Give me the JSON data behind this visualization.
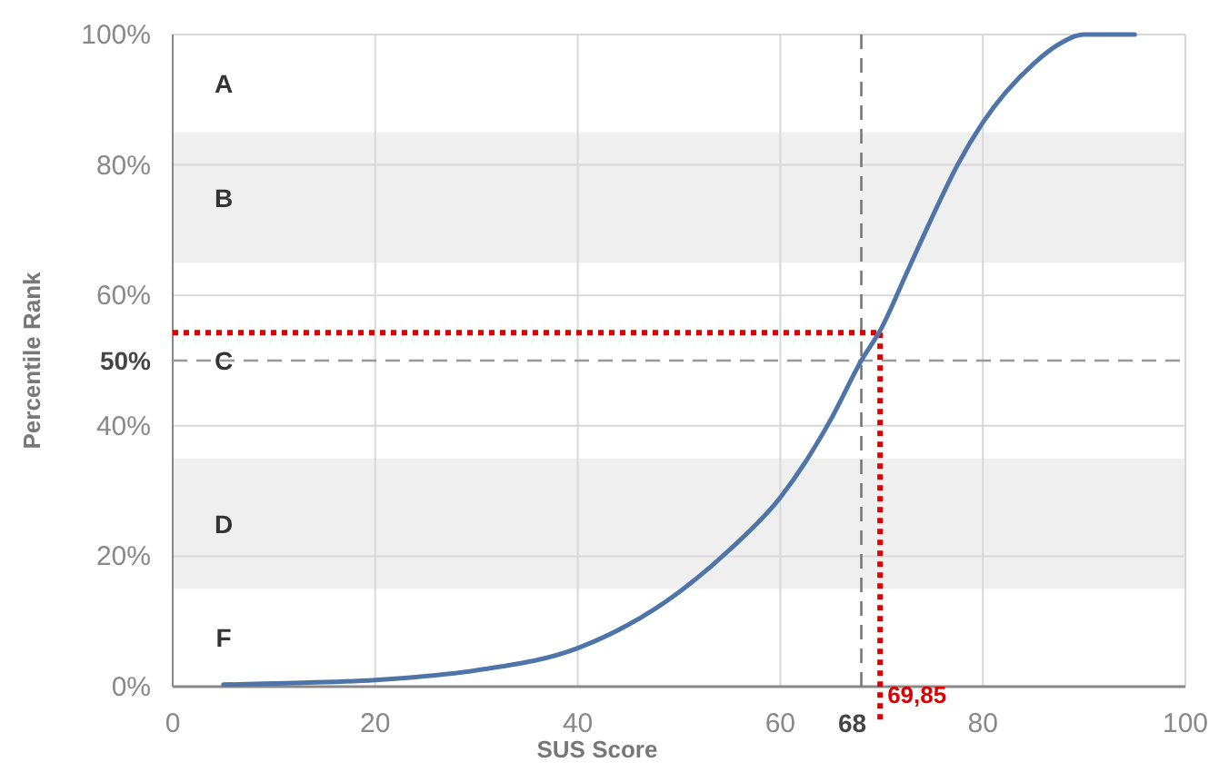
{
  "chart_data": {
    "type": "line",
    "xlabel": "SUS Score",
    "ylabel": "Percentile Rank",
    "x": [
      5,
      10,
      20,
      30,
      40,
      45,
      50,
      55,
      60,
      62.5,
      65,
      68,
      70,
      72.5,
      75,
      77.5,
      80,
      85,
      87.5,
      90,
      95
    ],
    "series": [
      {
        "color": "#4f74a8",
        "values": [
          0.3,
          0.5,
          1,
          2.5,
          5.9,
          9.5,
          14.5,
          21,
          29,
          34.5,
          41,
          50,
          55,
          63.5,
          72,
          80,
          86.5,
          95.5,
          98.5,
          100,
          100
        ]
      }
    ],
    "xlim": [
      0,
      100
    ],
    "xticks": [
      0,
      20,
      40,
      60,
      80,
      100
    ],
    "ylim": [
      0,
      100
    ],
    "yticks": [
      {
        "value": 0,
        "label": "0%"
      },
      {
        "value": 20,
        "label": "20%"
      },
      {
        "value": 40,
        "label": "40%"
      },
      {
        "value": 60,
        "label": "60%"
      },
      {
        "value": 80,
        "label": "80%"
      },
      {
        "value": 100,
        "label": "100%"
      }
    ],
    "grid": true,
    "marker": "none",
    "line_style": "solid",
    "bands": [
      {
        "axis": "y",
        "from": 65,
        "to": 85,
        "label": "B",
        "color": "#efefef"
      },
      {
        "axis": "y",
        "from": 15,
        "to": 35,
        "label": "D",
        "color": "#efefef"
      }
    ],
    "annotations": [
      "A",
      "C",
      "F"
    ],
    "ref_lines": [
      {
        "axis": "x",
        "value": 68,
        "label": "68",
        "color": "#777777",
        "line_style": "dashed"
      },
      {
        "axis": "y",
        "value": 50,
        "label": "50%",
        "color": "#999999",
        "line_style": "dashed"
      },
      {
        "axis": "x",
        "value": 69.85,
        "label": "69,85",
        "color": "#dd0000",
        "line_style": "dotted"
      },
      {
        "axis": "y",
        "value": 54.3,
        "label": null,
        "color": "#dd0000",
        "line_style": "dotted"
      }
    ]
  }
}
